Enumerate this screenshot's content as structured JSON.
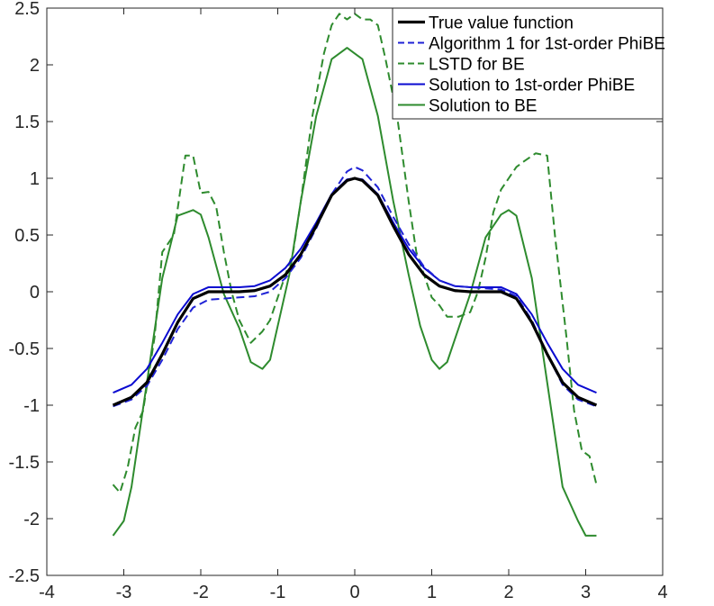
{
  "chart_data": {
    "type": "line",
    "xlim": [
      -4,
      4
    ],
    "ylim": [
      -2.5,
      2.5
    ],
    "x_ticks": [
      "-4",
      "-3",
      "-2",
      "-1",
      "0",
      "1",
      "2",
      "3",
      "4"
    ],
    "y_ticks": [
      "2.5",
      "2",
      "1.5",
      "1",
      "0.5",
      "0",
      "-0.5",
      "-1",
      "-1.5",
      "-2",
      "-2.5"
    ],
    "grid": false,
    "legend_position": "top-right",
    "series": [
      {
        "name": "True value function",
        "color": "#000000",
        "style": "solid-thick",
        "x": [
          -3.14,
          -2.9,
          -2.7,
          -2.5,
          -2.3,
          -2.1,
          -1.9,
          -1.7,
          -1.5,
          -1.3,
          -1.1,
          -0.9,
          -0.7,
          -0.5,
          -0.3,
          -0.1,
          0,
          0.1,
          0.3,
          0.5,
          0.7,
          0.9,
          1.1,
          1.3,
          1.5,
          1.7,
          1.9,
          2.1,
          2.3,
          2.5,
          2.7,
          2.9,
          3.14
        ],
        "y": [
          -1.0,
          -0.93,
          -0.8,
          -0.55,
          -0.27,
          -0.06,
          0,
          0,
          0,
          0.01,
          0.05,
          0.15,
          0.33,
          0.58,
          0.85,
          0.98,
          1.0,
          0.98,
          0.85,
          0.58,
          0.33,
          0.15,
          0.05,
          0.01,
          0,
          0,
          0,
          -0.06,
          -0.27,
          -0.55,
          -0.8,
          -0.93,
          -1.0
        ]
      },
      {
        "name": "Algorithm 1 for 1st-order PhiBE",
        "color": "#1f22d6",
        "style": "dashed",
        "x": [
          -3.14,
          -2.9,
          -2.7,
          -2.5,
          -2.3,
          -2.1,
          -1.9,
          -1.7,
          -1.5,
          -1.3,
          -1.1,
          -0.9,
          -0.7,
          -0.5,
          -0.3,
          -0.1,
          0,
          0.1,
          0.3,
          0.5,
          0.7,
          0.9,
          1.1,
          1.3,
          1.5,
          1.7,
          1.9,
          2.1,
          2.3,
          2.5,
          2.7,
          2.9,
          3.14
        ],
        "y": [
          -1.01,
          -0.95,
          -0.83,
          -0.6,
          -0.33,
          -0.14,
          -0.07,
          -0.06,
          -0.05,
          -0.04,
          0.0,
          0.12,
          0.3,
          0.56,
          0.86,
          1.06,
          1.1,
          1.07,
          0.92,
          0.66,
          0.42,
          0.22,
          0.1,
          0.05,
          0.04,
          0.03,
          0.02,
          -0.04,
          -0.25,
          -0.55,
          -0.82,
          -0.95,
          -1.01
        ]
      },
      {
        "name": "LSTD for BE",
        "color": "#2e8b2e",
        "style": "dashed",
        "x": [
          -3.14,
          -3.05,
          -2.95,
          -2.85,
          -2.75,
          -2.6,
          -2.5,
          -2.35,
          -2.2,
          -2.1,
          -2.0,
          -1.9,
          -1.8,
          -1.7,
          -1.6,
          -1.5,
          -1.35,
          -1.2,
          -1.1,
          -1.0,
          -0.9,
          -0.8,
          -0.7,
          -0.55,
          -0.4,
          -0.3,
          -0.2,
          -0.1,
          0,
          0.1,
          0.2,
          0.3,
          0.4,
          0.55,
          0.7,
          0.8,
          0.9,
          1.0,
          1.1,
          1.2,
          1.35,
          1.5,
          1.6,
          1.7,
          1.8,
          1.9,
          2.0,
          2.1,
          2.2,
          2.35,
          2.5,
          2.6,
          2.75,
          2.85,
          2.95,
          3.05,
          3.14
        ],
        "y": [
          -1.7,
          -1.77,
          -1.55,
          -1.2,
          -1.05,
          -0.4,
          0.35,
          0.5,
          1.2,
          1.2,
          0.87,
          0.88,
          0.75,
          0.35,
          0.0,
          -0.25,
          -0.45,
          -0.35,
          -0.25,
          -0.05,
          0.15,
          0.35,
          0.8,
          1.55,
          2.1,
          2.35,
          2.45,
          2.4,
          2.45,
          2.4,
          2.4,
          2.35,
          2.05,
          1.55,
          0.8,
          0.35,
          0.15,
          -0.05,
          -0.12,
          -0.22,
          -0.22,
          -0.18,
          0.0,
          0.3,
          0.7,
          0.9,
          1.0,
          1.1,
          1.15,
          1.22,
          1.2,
          0.5,
          -0.4,
          -1.05,
          -1.4,
          -1.45,
          -1.7
        ]
      },
      {
        "name": "Solution to 1st-order PhiBE",
        "color": "#0a0ad0",
        "style": "solid",
        "x": [
          -3.14,
          -2.9,
          -2.7,
          -2.5,
          -2.3,
          -2.1,
          -1.9,
          -1.7,
          -1.5,
          -1.3,
          -1.1,
          -0.9,
          -0.7,
          -0.5,
          -0.3,
          -0.1,
          0,
          0.1,
          0.3,
          0.5,
          0.7,
          0.9,
          1.1,
          1.3,
          1.5,
          1.7,
          1.9,
          2.1,
          2.3,
          2.5,
          2.7,
          2.9,
          3.14
        ],
        "y": [
          -0.89,
          -0.82,
          -0.68,
          -0.45,
          -0.2,
          -0.02,
          0.04,
          0.04,
          0.04,
          0.05,
          0.1,
          0.21,
          0.38,
          0.61,
          0.86,
          0.99,
          1.0,
          0.99,
          0.86,
          0.61,
          0.38,
          0.21,
          0.1,
          0.05,
          0.04,
          0.04,
          0.04,
          -0.02,
          -0.2,
          -0.45,
          -0.68,
          -0.82,
          -0.89
        ]
      },
      {
        "name": "Solution to BE",
        "color": "#2e8b2e",
        "style": "solid",
        "x": [
          -3.14,
          -3.0,
          -2.9,
          -2.7,
          -2.5,
          -2.3,
          -2.1,
          -2.0,
          -1.9,
          -1.7,
          -1.5,
          -1.35,
          -1.2,
          -1.1,
          -1.0,
          -0.85,
          -0.7,
          -0.5,
          -0.3,
          -0.1,
          0,
          0.1,
          0.3,
          0.5,
          0.7,
          0.85,
          1.0,
          1.1,
          1.2,
          1.35,
          1.5,
          1.7,
          1.9,
          2.0,
          2.1,
          2.3,
          2.5,
          2.7,
          2.9,
          3.0,
          3.14
        ],
        "y": [
          -2.15,
          -2.02,
          -1.72,
          -0.8,
          0.12,
          0.67,
          0.72,
          0.68,
          0.48,
          -0.02,
          -0.32,
          -0.62,
          -0.68,
          -0.6,
          -0.3,
          0.15,
          0.8,
          1.55,
          2.05,
          2.15,
          2.1,
          2.05,
          1.55,
          0.8,
          0.15,
          -0.3,
          -0.6,
          -0.68,
          -0.62,
          -0.32,
          -0.02,
          0.48,
          0.68,
          0.72,
          0.67,
          0.12,
          -0.8,
          -1.72,
          -2.02,
          -2.15,
          -2.15
        ]
      }
    ]
  }
}
